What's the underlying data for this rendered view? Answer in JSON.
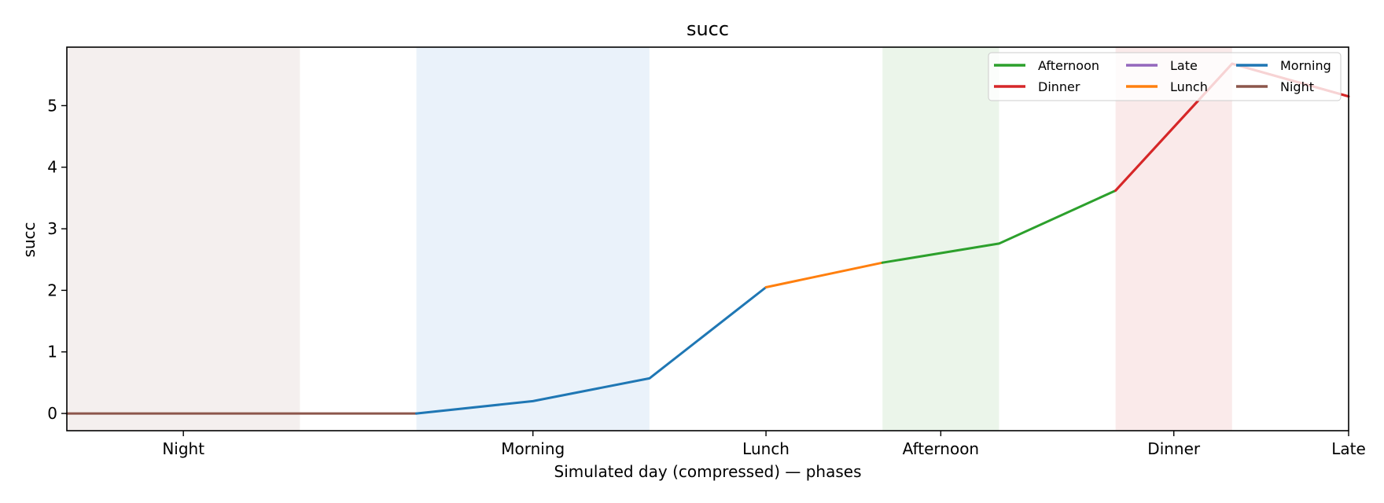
{
  "chart_data": {
    "type": "line",
    "title": "succ",
    "xlabel": "Simulated day (compressed) — phases",
    "ylabel": "succ",
    "xlim": [
      0,
      11
    ],
    "ylim": [
      -0.28,
      5.95
    ],
    "x_ticks": [
      {
        "x": 1,
        "label": "Night"
      },
      {
        "x": 4,
        "label": "Morning"
      },
      {
        "x": 6,
        "label": "Lunch"
      },
      {
        "x": 7.5,
        "label": "Afternoon"
      },
      {
        "x": 9.5,
        "label": "Dinner"
      },
      {
        "x": 11,
        "label": "Late"
      }
    ],
    "y_ticks": [
      0,
      1,
      2,
      3,
      4,
      5
    ],
    "grid": false,
    "legend": {
      "position": "top-right",
      "columns": 3
    },
    "bands": [
      {
        "from": 0,
        "to": 2,
        "color": "#f4efee"
      },
      {
        "from": 3,
        "to": 5,
        "color": "#eaf2fa"
      },
      {
        "from": 7,
        "to": 8,
        "color": "#ebf5ea"
      },
      {
        "from": 9,
        "to": 10,
        "color": "#faeaea"
      }
    ],
    "series": [
      {
        "name": "Afternoon",
        "color": "#2ca02c",
        "points": [
          [
            7,
            2.45
          ],
          [
            8,
            2.76
          ],
          [
            9,
            3.62
          ]
        ]
      },
      {
        "name": "Dinner",
        "color": "#d62728",
        "points": [
          [
            9,
            3.62
          ],
          [
            10,
            5.68
          ],
          [
            11,
            5.15
          ]
        ]
      },
      {
        "name": "Late",
        "color": "#9467bd",
        "points": []
      },
      {
        "name": "Lunch",
        "color": "#ff7f0e",
        "points": [
          [
            6,
            2.05
          ],
          [
            7,
            2.45
          ]
        ]
      },
      {
        "name": "Morning",
        "color": "#1f77b4",
        "points": [
          [
            3,
            0.0
          ],
          [
            4,
            0.2
          ],
          [
            5,
            0.57
          ],
          [
            6,
            2.05
          ]
        ]
      },
      {
        "name": "Night",
        "color": "#8c564b",
        "points": [
          [
            0,
            0.0
          ],
          [
            1,
            0.0
          ],
          [
            2,
            0.0
          ],
          [
            3,
            0.0
          ]
        ]
      }
    ]
  }
}
